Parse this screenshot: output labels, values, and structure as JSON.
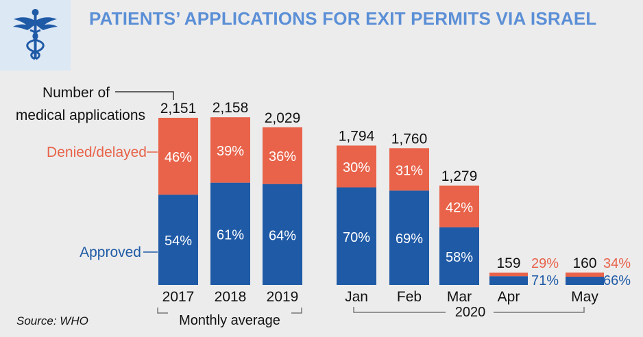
{
  "title": "PATIENTS’ APPLICATIONS FOR EXIT PERMITS VIA ISRAEL",
  "source": "Source: WHO",
  "logo": {
    "icon": "caduceus-icon",
    "color": "#1f5aa6"
  },
  "colors": {
    "approved": "#1f5aa6",
    "denied": "#e8634a",
    "background": "#ececec",
    "title": "#5b8fd6"
  },
  "chart_data": {
    "type": "bar",
    "stacked": true,
    "categories": [
      "2017",
      "2018",
      "2019",
      "Jan",
      "Feb",
      "Mar",
      "Apr",
      "May"
    ],
    "totals": [
      2151,
      2158,
      2029,
      1794,
      1760,
      1279,
      159,
      160
    ],
    "total_labels": [
      "2,151",
      "2,158",
      "2,029",
      "1,794",
      "1,760",
      "1,279",
      "159",
      "160"
    ],
    "series": [
      {
        "name": "Approved",
        "percent": [
          54,
          61,
          64,
          70,
          69,
          58,
          71,
          66
        ]
      },
      {
        "name": "Denied/delayed",
        "percent": [
          46,
          39,
          36,
          30,
          31,
          42,
          29,
          34
        ]
      }
    ],
    "groups": [
      {
        "label": "Monthly average",
        "categories": [
          "2017",
          "2018",
          "2019"
        ]
      },
      {
        "label": "2020",
        "categories": [
          "Jan",
          "Feb",
          "Mar",
          "Apr",
          "May"
        ]
      }
    ],
    "annotations": {
      "total": "Number of medical applications",
      "total_lines": [
        "Number of",
        "medical applications"
      ],
      "denied": "Denied/delayed",
      "approved": "Approved"
    }
  }
}
